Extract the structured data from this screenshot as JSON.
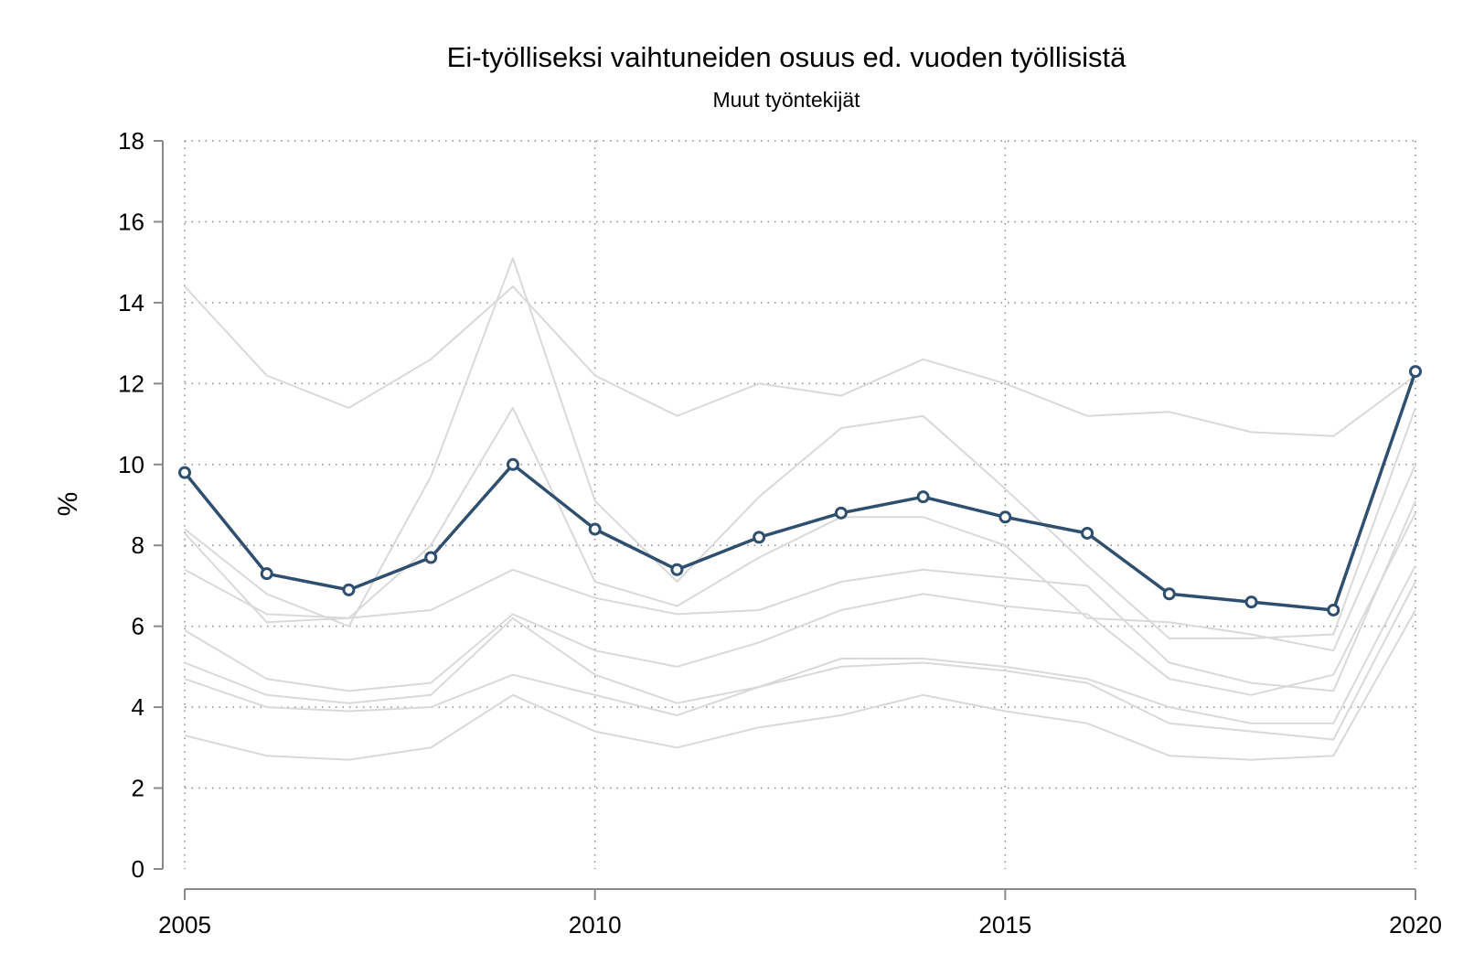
{
  "chart_data": {
    "type": "line",
    "title": "Ei-työlliseksi vaihtuneiden osuus ed. vuoden työllisistä",
    "subtitle": "Muut työntekijät",
    "xlabel": "",
    "ylabel": "%",
    "xlim": [
      2005,
      2020
    ],
    "ylim": [
      0,
      18
    ],
    "x_ticks": [
      "2005",
      "2010",
      "2015",
      "2020"
    ],
    "y_ticks": [
      "0",
      "2",
      "4",
      "6",
      "8",
      "10",
      "12",
      "14",
      "16",
      "18"
    ],
    "grid": true,
    "legend": "none",
    "x": [
      2005,
      2006,
      2007,
      2008,
      2009,
      2010,
      2011,
      2012,
      2013,
      2014,
      2015,
      2016,
      2017,
      2018,
      2019,
      2020
    ],
    "highlight_color": "#2f4f6f",
    "background_color": "#d9d9d9",
    "highlight": {
      "values": [
        9.8,
        7.3,
        6.9,
        7.7,
        10.0,
        8.4,
        7.4,
        8.2,
        8.8,
        9.2,
        8.7,
        8.3,
        6.8,
        6.6,
        6.4,
        12.3
      ]
    },
    "background_series": [
      {
        "values": [
          14.4,
          12.2,
          11.4,
          12.6,
          14.4,
          12.2,
          11.2,
          12.0,
          11.7,
          12.6,
          12.0,
          11.2,
          11.3,
          10.8,
          10.7,
          12.2
        ]
      },
      {
        "values": [
          8.4,
          6.8,
          6.0,
          9.7,
          15.1,
          9.1,
          7.1,
          9.2,
          10.9,
          11.2,
          9.4,
          7.5,
          5.7,
          5.7,
          5.8,
          11.4
        ]
      },
      {
        "values": [
          8.3,
          6.1,
          6.2,
          8.0,
          11.4,
          7.1,
          6.5,
          7.7,
          8.7,
          8.7,
          8.0,
          6.2,
          6.1,
          5.8,
          5.4,
          10.0
        ]
      },
      {
        "values": [
          7.4,
          6.3,
          6.2,
          6.4,
          7.4,
          6.7,
          6.3,
          6.4,
          7.1,
          7.4,
          7.2,
          7.0,
          5.1,
          4.6,
          4.4,
          9.1
        ]
      },
      {
        "values": [
          5.9,
          4.7,
          4.4,
          4.6,
          6.3,
          5.4,
          5.0,
          5.6,
          6.4,
          6.8,
          6.5,
          6.3,
          4.7,
          4.3,
          4.8,
          8.8
        ]
      },
      {
        "values": [
          5.1,
          4.3,
          4.1,
          4.3,
          6.2,
          4.8,
          4.1,
          4.5,
          5.2,
          5.2,
          5.0,
          4.7,
          4.0,
          3.6,
          3.6,
          7.5
        ]
      },
      {
        "values": [
          4.7,
          4.0,
          3.9,
          4.0,
          4.8,
          4.3,
          3.8,
          4.5,
          5.0,
          5.1,
          4.9,
          4.6,
          3.6,
          3.4,
          3.2,
          7.1
        ]
      },
      {
        "values": [
          3.3,
          2.8,
          2.7,
          3.0,
          4.3,
          3.4,
          3.0,
          3.5,
          3.8,
          4.3,
          3.9,
          3.6,
          2.8,
          2.7,
          2.8,
          6.4
        ]
      }
    ]
  }
}
